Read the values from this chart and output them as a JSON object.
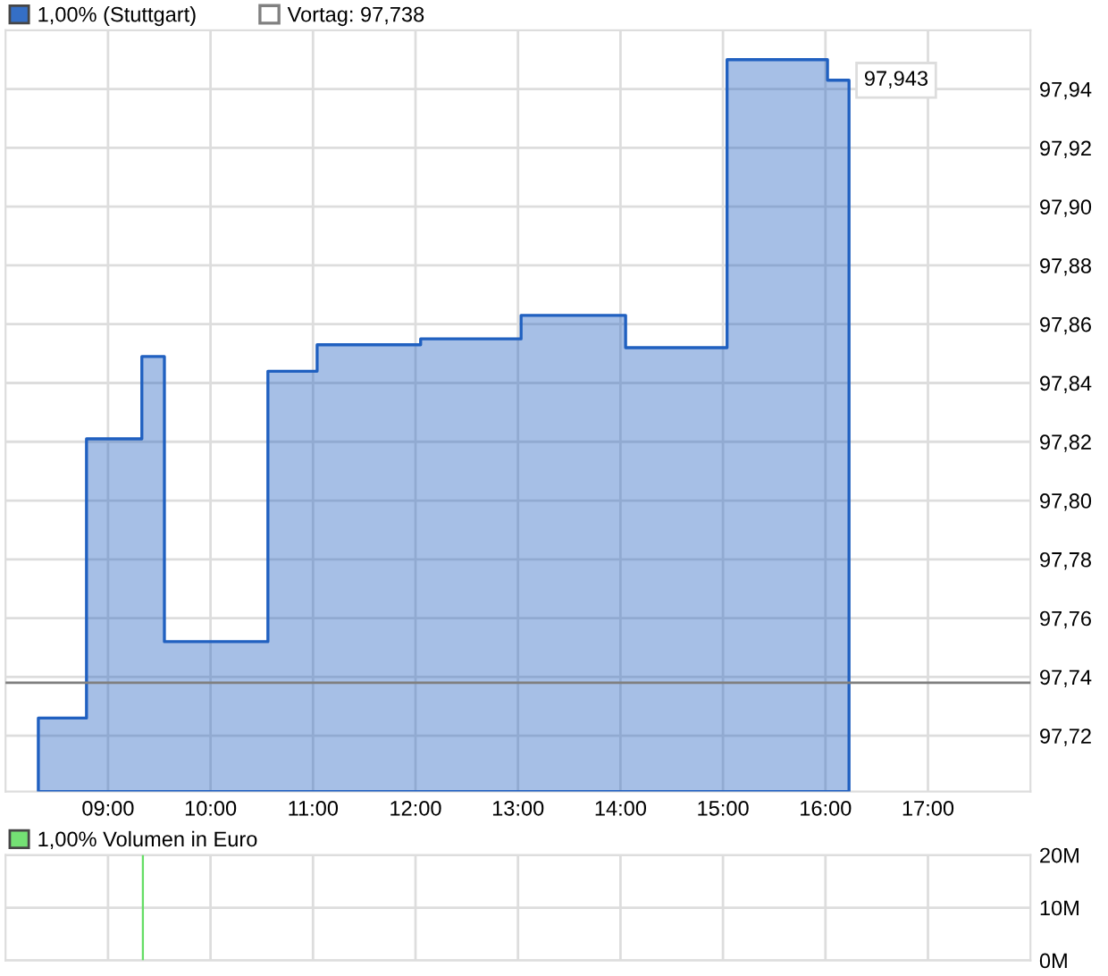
{
  "chart_data": [
    {
      "type": "area",
      "legend": "top",
      "grid": true,
      "marker": "none",
      "line_style": "solid",
      "x": [
        8.32,
        8.79,
        9.33,
        9.55,
        10.56,
        11.04,
        12.05,
        13.03,
        14.05,
        15.04,
        16.02,
        16.23
      ],
      "series": [
        {
          "name": "1,00% (Stuttgart)",
          "color": "#2060c0",
          "values": [
            97.726,
            97.821,
            97.849,
            97.752,
            97.844,
            97.853,
            97.855,
            97.863,
            97.852,
            97.95,
            97.943,
            97.943
          ]
        }
      ],
      "xlim": [
        8.0,
        18.0
      ],
      "xticks": [
        {
          "value": 9,
          "label": "09:00"
        },
        {
          "value": 10,
          "label": "10:00"
        },
        {
          "value": 11,
          "label": "11:00"
        },
        {
          "value": 12,
          "label": "12:00"
        },
        {
          "value": 13,
          "label": "13:00"
        },
        {
          "value": 14,
          "label": "14:00"
        },
        {
          "value": 15,
          "label": "15:00"
        },
        {
          "value": 16,
          "label": "16:00"
        },
        {
          "value": 17,
          "label": "17:00"
        }
      ],
      "ylim": [
        97.701,
        97.96
      ],
      "yticks": [
        {
          "value": 97.72,
          "label": "97,72"
        },
        {
          "value": 97.74,
          "label": "97,74"
        },
        {
          "value": 97.76,
          "label": "97,76"
        },
        {
          "value": 97.78,
          "label": "97,78"
        },
        {
          "value": 97.8,
          "label": "97,80"
        },
        {
          "value": 97.82,
          "label": "97,82"
        },
        {
          "value": 97.84,
          "label": "97,84"
        },
        {
          "value": 97.86,
          "label": "97,86"
        },
        {
          "value": 97.88,
          "label": "97,88"
        },
        {
          "value": 97.9,
          "label": "97,90"
        },
        {
          "value": 97.92,
          "label": "97,92"
        },
        {
          "value": 97.94,
          "label": "97,94"
        }
      ],
      "ref_lines": [
        {
          "axis": "y",
          "value": 97.738,
          "label": "Vortag: 97,738",
          "color": "#808080"
        }
      ],
      "annotations": [
        {
          "text": "97,943",
          "x": 16.23,
          "y": 97.943
        }
      ]
    },
    {
      "type": "bar",
      "legend": "top",
      "grid": true,
      "tick_labels": "y",
      "x": [
        9.34
      ],
      "series": [
        {
          "name": "1,00% Volumen in Euro",
          "color": "#66dd66",
          "values": [
            20
          ]
        }
      ],
      "xlim": [
        8.0,
        18.0
      ],
      "xticks": [
        {
          "value": 9,
          "label": null
        },
        {
          "value": 10,
          "label": null
        },
        {
          "value": 11,
          "label": null
        },
        {
          "value": 12,
          "label": null
        },
        {
          "value": 13,
          "label": null
        },
        {
          "value": 14,
          "label": null
        },
        {
          "value": 15,
          "label": null
        },
        {
          "value": 16,
          "label": null
        },
        {
          "value": 17,
          "label": null
        }
      ],
      "ylim": [
        0,
        20
      ],
      "yticks": [
        {
          "value": 0,
          "label": "0M"
        },
        {
          "value": 10,
          "label": "10M"
        },
        {
          "value": 20,
          "label": "20M"
        }
      ]
    }
  ]
}
